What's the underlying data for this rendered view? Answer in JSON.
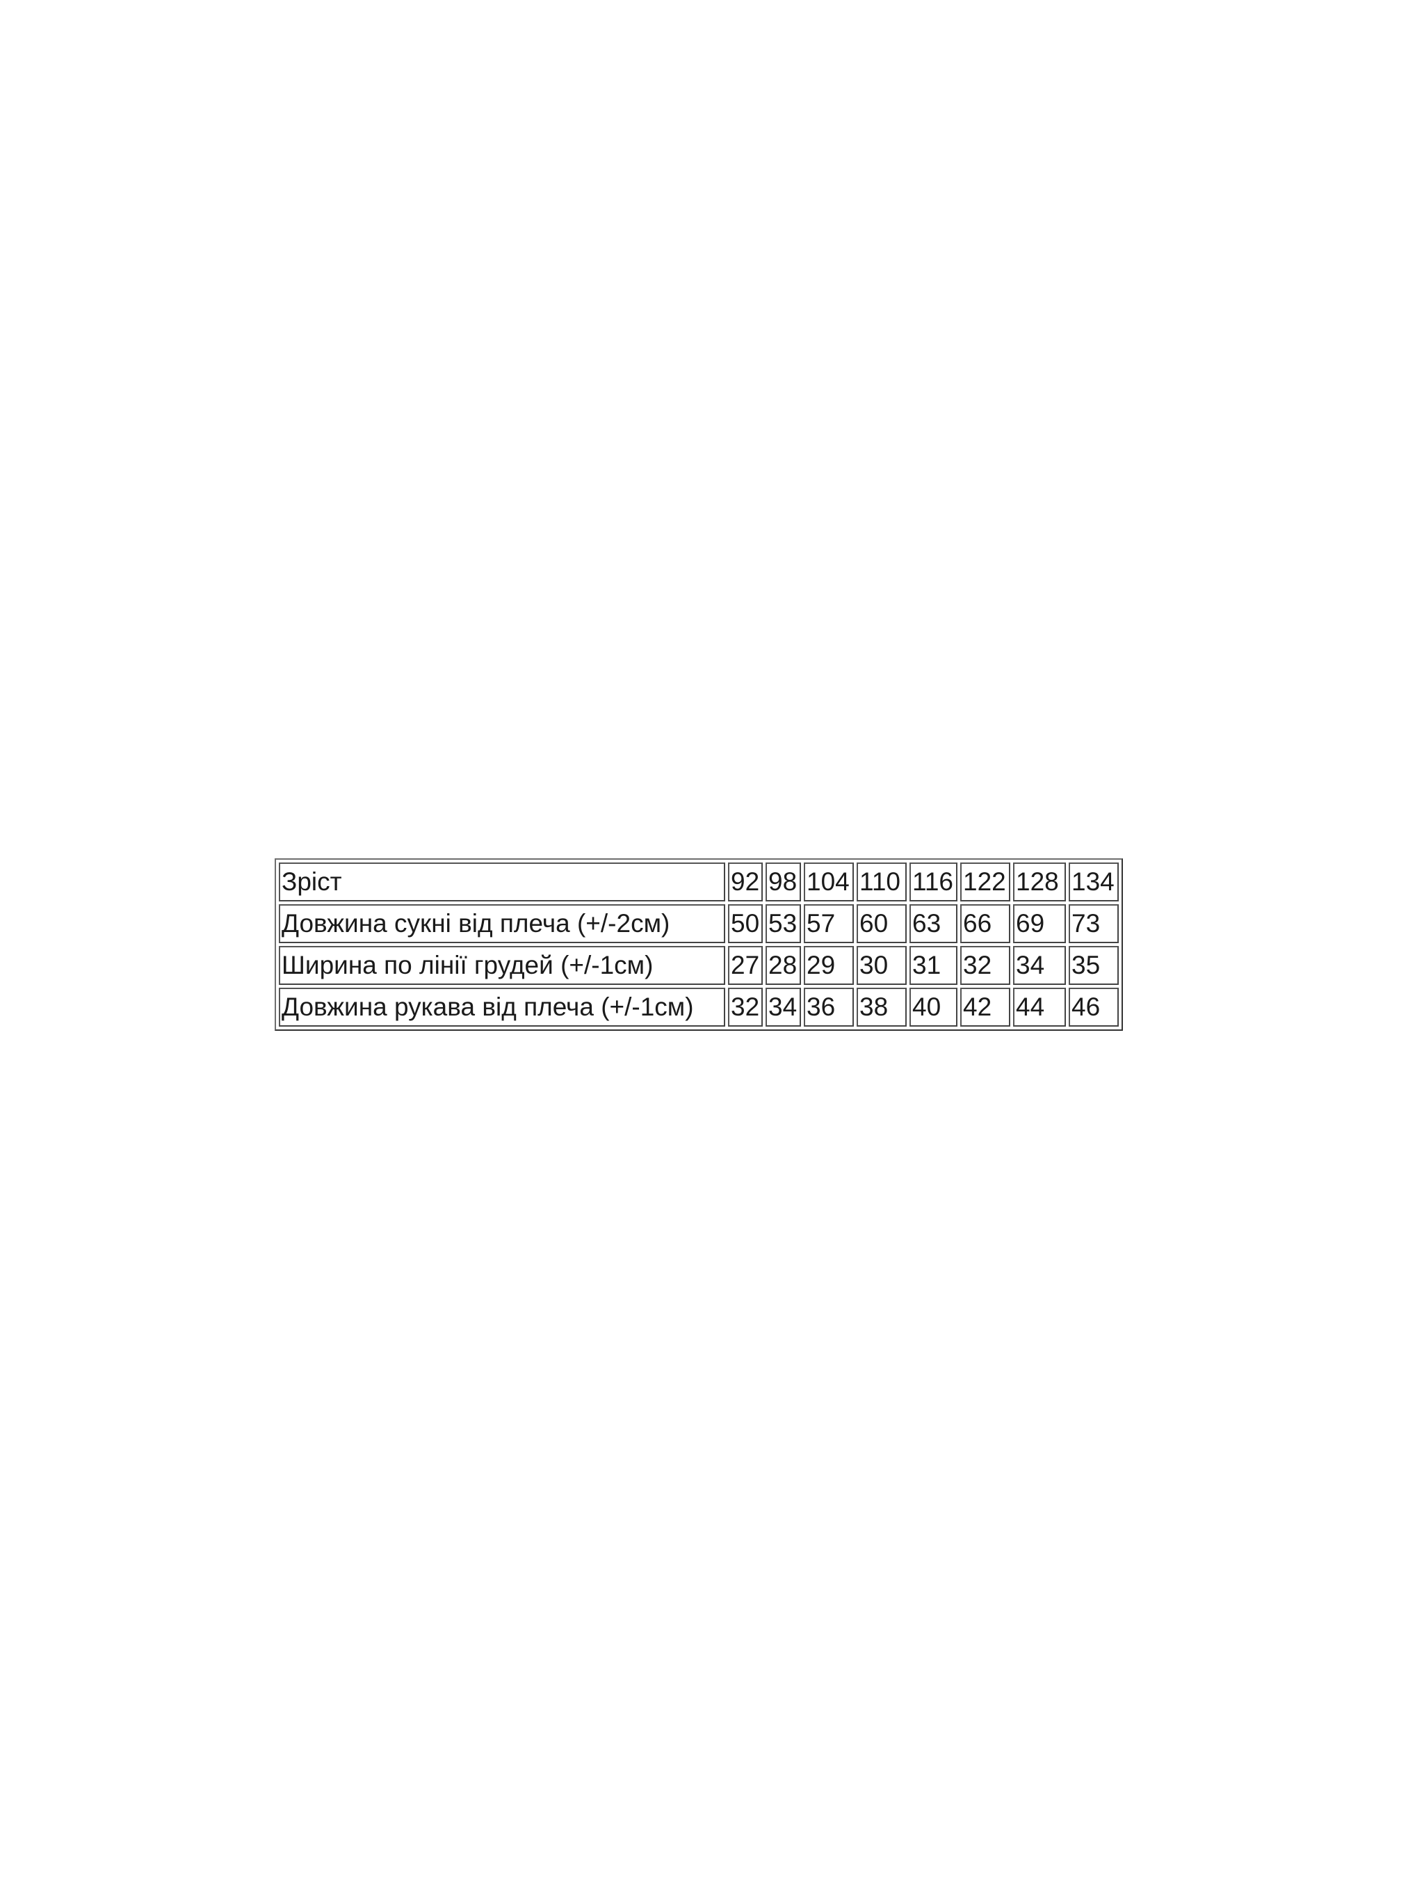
{
  "size_table": {
    "header": {
      "label": "Зріст",
      "values": [
        "92",
        "98",
        "104",
        "110",
        "116",
        "122",
        "128",
        "134"
      ]
    },
    "rows": [
      {
        "label": "Довжина сукні від плеча (+/-2см)",
        "values": [
          "50",
          "53",
          "57",
          "60",
          "63",
          "66",
          "69",
          "73"
        ]
      },
      {
        "label": "Ширина по лінії грудей (+/-1см)",
        "values": [
          "27",
          "28",
          "29",
          "30",
          "31",
          "32",
          "34",
          "35"
        ]
      },
      {
        "label": "Довжина рукава від плеча (+/-1см)",
        "values": [
          "32",
          "34",
          "36",
          "38",
          "40",
          "42",
          "44",
          "46"
        ]
      }
    ]
  }
}
